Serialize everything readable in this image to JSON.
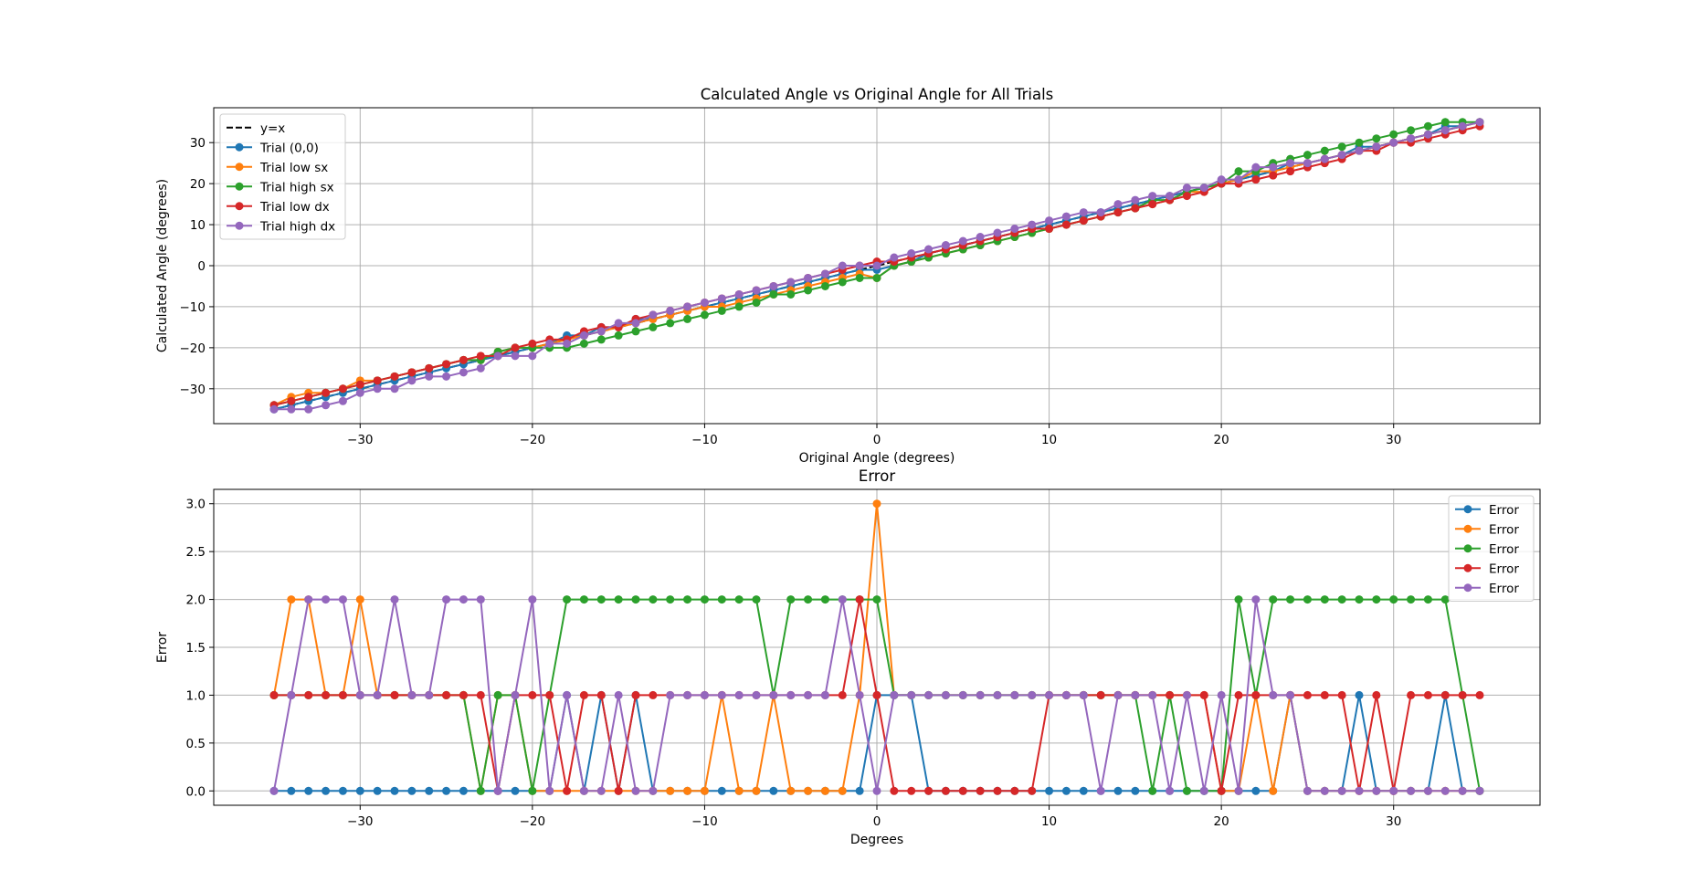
{
  "chart_data": [
    {
      "type": "line",
      "title": "Calculated Angle vs Original Angle for All Trials",
      "xlabel": "Original Angle (degrees)",
      "ylabel": "Calculated Angle (degrees)",
      "xlim": [
        -38.5,
        38.5
      ],
      "ylim": [
        -38.5,
        38.5
      ],
      "xticks": [
        -30,
        -20,
        -10,
        0,
        10,
        20,
        30
      ],
      "yticks": [
        -30,
        -20,
        -10,
        0,
        10,
        20,
        30
      ],
      "grid": true,
      "legend_position": "upper-left",
      "x": [
        -35,
        -34,
        -33,
        -32,
        -31,
        -30,
        -29,
        -28,
        -27,
        -26,
        -25,
        -24,
        -23,
        -22,
        -21,
        -20,
        -19,
        -18,
        -17,
        -16,
        -15,
        -14,
        -13,
        -12,
        -11,
        -10,
        -9,
        -8,
        -7,
        -6,
        -5,
        -4,
        -3,
        -2,
        -1,
        0,
        1,
        2,
        3,
        4,
        5,
        6,
        7,
        8,
        9,
        10,
        11,
        12,
        13,
        14,
        15,
        16,
        17,
        18,
        19,
        20,
        21,
        22,
        23,
        24,
        25,
        26,
        27,
        28,
        29,
        30,
        31,
        32,
        33,
        34,
        35
      ],
      "series": [
        {
          "name": "y=x",
          "color": "#000000",
          "dashed": true,
          "marker": false,
          "values": [
            -35,
            -34,
            -33,
            -32,
            -31,
            -30,
            -29,
            -28,
            -27,
            -26,
            -25,
            -24,
            -23,
            -22,
            -21,
            -20,
            -19,
            -18,
            -17,
            -16,
            -15,
            -14,
            -13,
            -12,
            -11,
            -10,
            -9,
            -8,
            -7,
            -6,
            -5,
            -4,
            -3,
            -2,
            -1,
            0,
            1,
            2,
            3,
            4,
            5,
            6,
            7,
            8,
            9,
            10,
            11,
            12,
            13,
            14,
            15,
            16,
            17,
            18,
            19,
            20,
            21,
            22,
            23,
            24,
            25,
            26,
            27,
            28,
            29,
            30,
            31,
            32,
            33,
            34,
            35
          ]
        },
        {
          "name": "Trial (0,0)",
          "color": "#1f77b4",
          "marker": true,
          "values": [
            -35,
            -34,
            -33,
            -32,
            -31,
            -30,
            -29,
            -28,
            -27,
            -26,
            -25,
            -24,
            -23,
            -22,
            -21,
            -20,
            -19,
            -17,
            -17,
            -15,
            -15,
            -13,
            -13,
            -12,
            -11,
            -10,
            -9,
            -8,
            -7,
            -6,
            -5,
            -4,
            -3,
            -2,
            -1,
            -1,
            0,
            1,
            3,
            4,
            5,
            6,
            7,
            8,
            9,
            10,
            11,
            12,
            13,
            14,
            15,
            16,
            17,
            18,
            19,
            20,
            21,
            22,
            23,
            25,
            25,
            26,
            27,
            29,
            29,
            30,
            31,
            32,
            34,
            34,
            35
          ]
        },
        {
          "name": "Trial low sx",
          "color": "#ff7f0e",
          "marker": true,
          "values": [
            -34,
            -32,
            -31,
            -31,
            -30,
            -28,
            -28,
            -27,
            -26,
            -25,
            -24,
            -23,
            -23,
            -21,
            -20,
            -20,
            -19,
            -18,
            -17,
            -16,
            -15,
            -14,
            -13,
            -12,
            -11,
            -10,
            -10,
            -9,
            -8,
            -7,
            -6,
            -5,
            -4,
            -3,
            -2,
            -3,
            0,
            1,
            2,
            3,
            4,
            5,
            6,
            7,
            8,
            9,
            10,
            11,
            12,
            13,
            14,
            15,
            16,
            18,
            18,
            20,
            21,
            23,
            23,
            24,
            25,
            26,
            27,
            28,
            29,
            30,
            31,
            32,
            33,
            34,
            35
          ]
        },
        {
          "name": "Trial high sx",
          "color": "#2ca02c",
          "marker": true,
          "values": [
            -34,
            -33,
            -32,
            -31,
            -30,
            -29,
            -28,
            -27,
            -26,
            -25,
            -24,
            -23,
            -23,
            -21,
            -20,
            -20,
            -20,
            -20,
            -19,
            -18,
            -17,
            -16,
            -15,
            -14,
            -13,
            -12,
            -11,
            -10,
            -9,
            -7,
            -7,
            -6,
            -5,
            -4,
            -3,
            -3,
            0,
            1,
            2,
            3,
            4,
            5,
            6,
            7,
            8,
            9,
            10,
            11,
            12,
            13,
            14,
            16,
            16,
            18,
            19,
            20,
            23,
            23,
            25,
            26,
            27,
            28,
            29,
            30,
            31,
            32,
            33,
            34,
            35,
            35,
            35
          ]
        },
        {
          "name": "Trial low dx",
          "color": "#d62728",
          "marker": true,
          "values": [
            -34,
            -33,
            -32,
            -31,
            -30,
            -29,
            -28,
            -27,
            -26,
            -25,
            -24,
            -23,
            -22,
            -22,
            -20,
            -19,
            -18,
            -18,
            -16,
            -15,
            -15,
            -13,
            -12,
            -11,
            -10,
            -9,
            -8,
            -7,
            -6,
            -5,
            -4,
            -3,
            -2,
            -1,
            0,
            1,
            1,
            2,
            3,
            4,
            5,
            6,
            7,
            8,
            9,
            9,
            10,
            11,
            12,
            13,
            14,
            15,
            16,
            17,
            18,
            20,
            20,
            21,
            22,
            23,
            24,
            25,
            26,
            28,
            28,
            30,
            30,
            31,
            32,
            33,
            34
          ]
        },
        {
          "name": "Trial high dx",
          "color": "#9467bd",
          "marker": true,
          "values": [
            -35,
            -35,
            -35,
            -34,
            -33,
            -31,
            -30,
            -30,
            -28,
            -27,
            -27,
            -26,
            -25,
            -22,
            -22,
            -22,
            -19,
            -19,
            -17,
            -16,
            -14,
            -14,
            -12,
            -11,
            -10,
            -9,
            -8,
            -7,
            -6,
            -5,
            -4,
            -3,
            -2,
            0,
            0,
            0,
            2,
            3,
            4,
            5,
            6,
            7,
            8,
            9,
            10,
            11,
            12,
            13,
            13,
            15,
            16,
            17,
            17,
            19,
            19,
            21,
            21,
            24,
            24,
            25,
            25,
            26,
            27,
            28,
            29,
            30,
            31,
            32,
            33,
            34,
            35
          ]
        }
      ]
    },
    {
      "type": "line",
      "title": "Error",
      "xlabel": "Degrees",
      "ylabel": "Error",
      "xlim": [
        -38.5,
        38.5
      ],
      "ylim": [
        -0.15,
        3.15
      ],
      "xticks": [
        -30,
        -20,
        -10,
        0,
        10,
        20,
        30
      ],
      "yticks": [
        0.0,
        0.5,
        1.0,
        1.5,
        2.0,
        2.5,
        3.0
      ],
      "ytick_labels": [
        "0.0",
        "0.5",
        "1.0",
        "1.5",
        "2.0",
        "2.5",
        "3.0"
      ],
      "grid": true,
      "legend_position": "upper-right",
      "x": [
        -35,
        -34,
        -33,
        -32,
        -31,
        -30,
        -29,
        -28,
        -27,
        -26,
        -25,
        -24,
        -23,
        -22,
        -21,
        -20,
        -19,
        -18,
        -17,
        -16,
        -15,
        -14,
        -13,
        -12,
        -11,
        -10,
        -9,
        -8,
        -7,
        -6,
        -5,
        -4,
        -3,
        -2,
        -1,
        0,
        1,
        2,
        3,
        4,
        5,
        6,
        7,
        8,
        9,
        10,
        11,
        12,
        13,
        14,
        15,
        16,
        17,
        18,
        19,
        20,
        21,
        22,
        23,
        24,
        25,
        26,
        27,
        28,
        29,
        30,
        31,
        32,
        33,
        34,
        35
      ],
      "series": [
        {
          "name": "Error",
          "color": "#1f77b4",
          "values": [
            0,
            0,
            0,
            0,
            0,
            0,
            0,
            0,
            0,
            0,
            0,
            0,
            0,
            0,
            0,
            0,
            0,
            1,
            0,
            1,
            0,
            1,
            0,
            0,
            0,
            0,
            0,
            0,
            0,
            0,
            0,
            0,
            0,
            0,
            0,
            1,
            1,
            1,
            0,
            0,
            0,
            0,
            0,
            0,
            0,
            0,
            0,
            0,
            0,
            0,
            0,
            0,
            0,
            0,
            0,
            0,
            0,
            0,
            0,
            1,
            0,
            0,
            0,
            1,
            0,
            0,
            0,
            0,
            1,
            0,
            0
          ]
        },
        {
          "name": "Error",
          "color": "#ff7f0e",
          "values": [
            1,
            2,
            2,
            1,
            1,
            2,
            1,
            1,
            1,
            1,
            1,
            1,
            0,
            1,
            1,
            0,
            0,
            0,
            0,
            0,
            0,
            0,
            0,
            0,
            0,
            0,
            1,
            0,
            0,
            1,
            0,
            0,
            0,
            0,
            1,
            3,
            1,
            1,
            1,
            1,
            1,
            1,
            1,
            1,
            1,
            1,
            1,
            1,
            1,
            1,
            1,
            1,
            1,
            1,
            1,
            0,
            0,
            1,
            0,
            1,
            0,
            0,
            0,
            0,
            0,
            0,
            0,
            0,
            0,
            0,
            0
          ]
        },
        {
          "name": "Error",
          "color": "#2ca02c",
          "values": [
            1,
            1,
            1,
            1,
            1,
            1,
            1,
            1,
            1,
            1,
            1,
            1,
            0,
            1,
            1,
            0,
            1,
            2,
            2,
            2,
            2,
            2,
            2,
            2,
            2,
            2,
            2,
            2,
            2,
            1,
            2,
            2,
            2,
            2,
            2,
            2,
            1,
            1,
            1,
            1,
            1,
            1,
            1,
            1,
            1,
            1,
            1,
            1,
            1,
            1,
            1,
            0,
            1,
            0,
            0,
            0,
            2,
            1,
            2,
            2,
            2,
            2,
            2,
            2,
            2,
            2,
            2,
            2,
            2,
            1,
            0
          ]
        },
        {
          "name": "Error",
          "color": "#d62728",
          "values": [
            1,
            1,
            1,
            1,
            1,
            1,
            1,
            1,
            1,
            1,
            1,
            1,
            1,
            0,
            1,
            1,
            1,
            0,
            1,
            1,
            0,
            1,
            1,
            1,
            1,
            1,
            1,
            1,
            1,
            1,
            1,
            1,
            1,
            1,
            2,
            1,
            0,
            0,
            0,
            0,
            0,
            0,
            0,
            0,
            0,
            1,
            1,
            1,
            1,
            1,
            1,
            1,
            1,
            1,
            1,
            0,
            1,
            1,
            1,
            1,
            1,
            1,
            1,
            0,
            1,
            0,
            1,
            1,
            1,
            1,
            1
          ]
        },
        {
          "name": "Error",
          "color": "#9467bd",
          "values": [
            0,
            1,
            2,
            2,
            2,
            1,
            1,
            2,
            1,
            1,
            2,
            2,
            2,
            0,
            1,
            2,
            0,
            1,
            0,
            0,
            1,
            0,
            0,
            1,
            1,
            1,
            1,
            1,
            1,
            1,
            1,
            1,
            1,
            2,
            1,
            0,
            1,
            1,
            1,
            1,
            1,
            1,
            1,
            1,
            1,
            1,
            1,
            1,
            0,
            1,
            1,
            1,
            0,
            1,
            0,
            1,
            0,
            2,
            1,
            1,
            0,
            0,
            0,
            0,
            0,
            0,
            0,
            0,
            0,
            0,
            0
          ]
        }
      ]
    }
  ]
}
